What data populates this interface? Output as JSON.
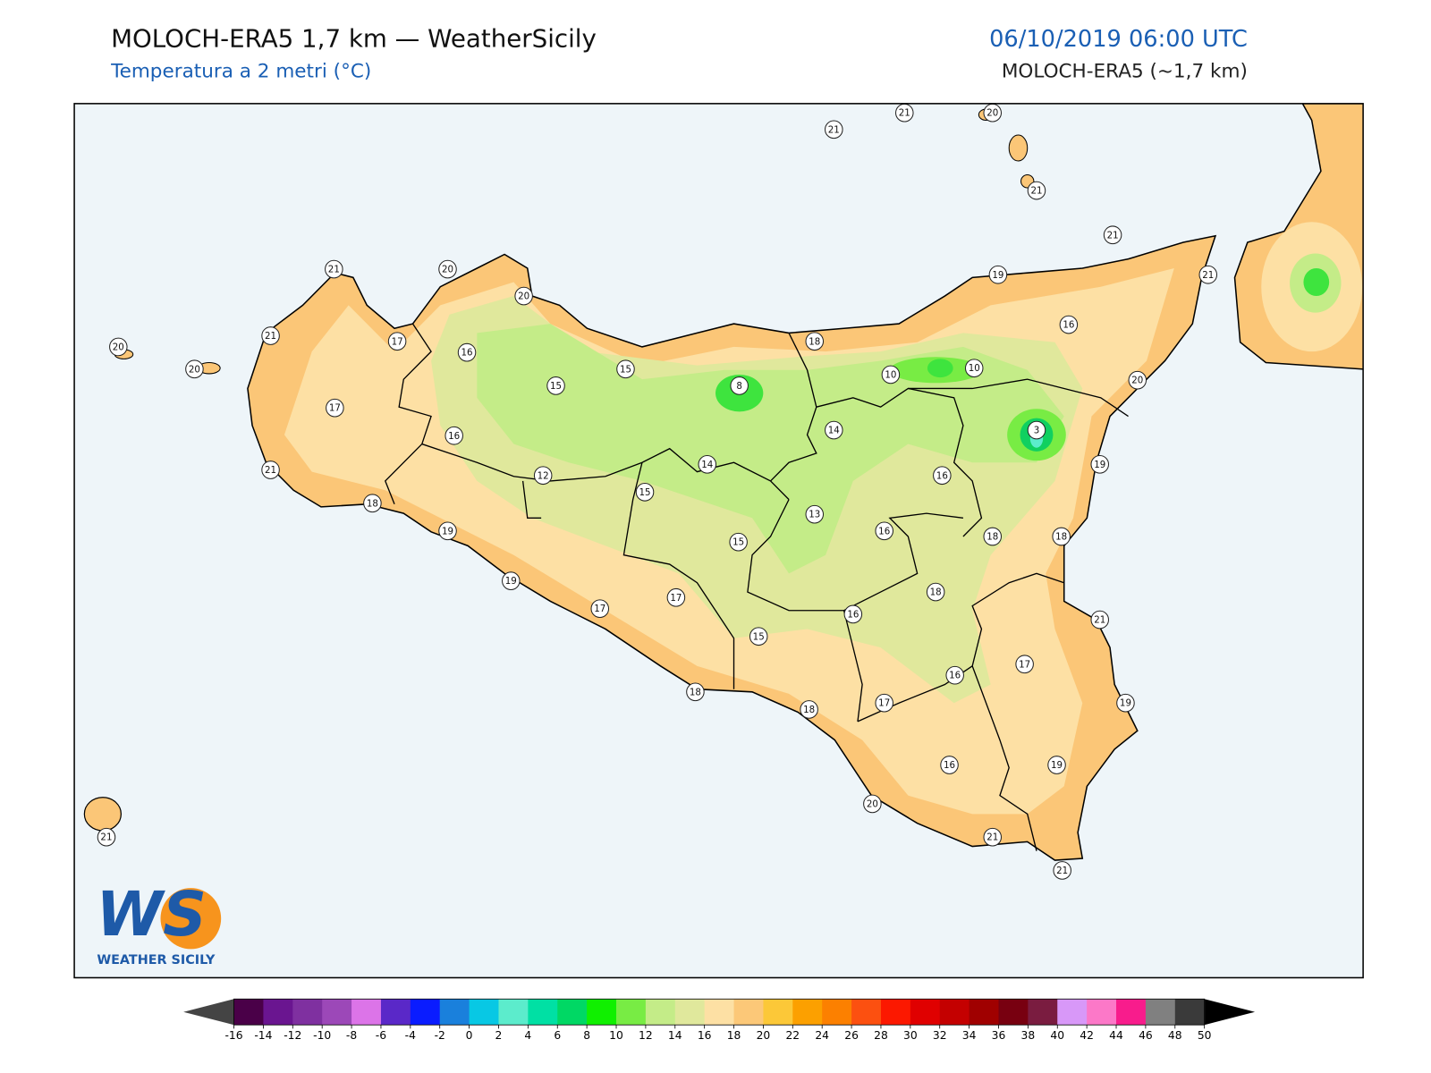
{
  "header": {
    "title": "MOLOCH-ERA5 1,7 km — WeatherSicily",
    "subtitle": "Temperatura a 2 metri (°C)",
    "datetime": "06/10/2019 06:00 UTC",
    "model": "MOLOCH-ERA5 (~1,7 km)"
  },
  "map": {
    "stations": [
      21,
      21,
      20,
      21,
      21,
      21,
      19,
      16,
      20,
      10,
      10,
      3,
      19,
      14,
      16,
      18,
      8,
      15,
      15,
      16,
      20,
      20,
      21,
      21,
      17,
      20,
      20,
      17,
      16,
      21,
      18,
      12,
      14,
      15,
      13,
      15,
      16,
      18,
      18,
      19,
      19,
      17,
      17,
      18,
      16,
      15,
      21,
      17,
      16,
      19,
      17,
      18,
      18,
      16,
      19,
      20,
      21,
      21,
      21
    ]
  },
  "colorbar": {
    "ticks": [
      -16,
      -14,
      -12,
      -10,
      -8,
      -6,
      -4,
      -2,
      0,
      2,
      4,
      6,
      8,
      10,
      12,
      14,
      16,
      18,
      20,
      22,
      24,
      26,
      28,
      30,
      32,
      34,
      36,
      38,
      40,
      42,
      44,
      46,
      48,
      50
    ],
    "colors": [
      "#4a0048",
      "#6a1590",
      "#7f30a0",
      "#9c48b8",
      "#dc74e8",
      "#5a28c8",
      "#0a1cff",
      "#1a80dc",
      "#08c8e4",
      "#5ceccc",
      "#00e0a4",
      "#00d864",
      "#10f000",
      "#78ec44",
      "#c4ec88",
      "#e0e89c",
      "#fde0a4",
      "#fcc878",
      "#fcc838",
      "#fca000",
      "#fc8000",
      "#fc5010",
      "#fc1800",
      "#e00000",
      "#c40000",
      "#a00000",
      "#780010",
      "#7a1c40",
      "#d898f8",
      "#fc78c8",
      "#f81c8c",
      "#808080",
      "#3a3a3a"
    ],
    "under_color": "#444444",
    "over_color": "#000000"
  },
  "logo": {
    "mark": "WS",
    "name": "WEATHER SICILY"
  }
}
